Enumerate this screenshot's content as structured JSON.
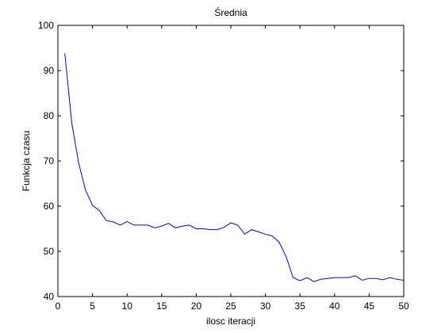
{
  "chart_data": {
    "type": "line",
    "title": "Średnia",
    "xlabel": "ilosc iteracji",
    "ylabel": "Funkcja czasu",
    "xlim": [
      0,
      50
    ],
    "ylim": [
      40,
      100
    ],
    "xticks": [
      0,
      5,
      10,
      15,
      20,
      25,
      30,
      35,
      40,
      45,
      50
    ],
    "yticks": [
      40,
      50,
      60,
      70,
      80,
      90,
      100
    ],
    "grid": false,
    "series": [
      {
        "color": "#0000ff",
        "x": [
          1,
          2,
          3,
          4,
          5,
          6,
          7,
          8,
          9,
          10,
          11,
          12,
          13,
          14,
          15,
          16,
          17,
          18,
          19,
          20,
          21,
          22,
          23,
          24,
          25,
          26,
          27,
          28,
          29,
          30,
          31,
          32,
          33,
          34,
          35,
          36,
          37,
          38,
          39,
          40,
          41,
          42,
          43,
          44,
          45,
          46,
          47,
          48,
          49,
          50
        ],
        "y": [
          93.8,
          78.5,
          69.5,
          63.5,
          60.2,
          59.0,
          56.8,
          56.5,
          55.8,
          56.6,
          55.8,
          55.8,
          55.8,
          55.2,
          55.6,
          56.2,
          55.2,
          55.6,
          55.8,
          55.0,
          55.0,
          54.8,
          54.8,
          55.3,
          56.3,
          55.8,
          53.8,
          54.8,
          54.3,
          53.8,
          53.4,
          52.0,
          48.8,
          44.2,
          43.5,
          44.2,
          43.3,
          43.8,
          44.0,
          44.2,
          44.2,
          44.2,
          44.6,
          43.6,
          44.0,
          44.0,
          43.7,
          44.2,
          43.8,
          43.6
        ]
      }
    ]
  }
}
